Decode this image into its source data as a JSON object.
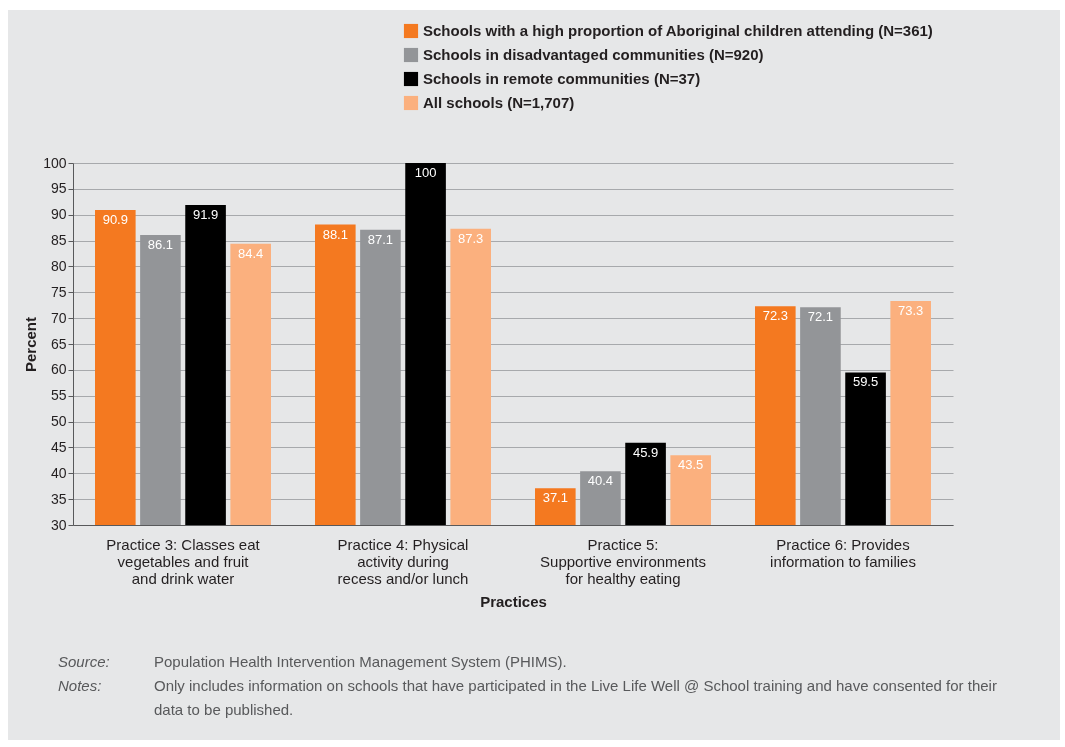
{
  "chart_data": {
    "type": "bar",
    "xlabel": "Practices",
    "ylabel": "Percent",
    "categories": [
      "Practice 3: Classes eat\nvegetables and fruit\nand drink water",
      "Practice 4: Physical\nactivity during\nrecess and/or lunch",
      "Practice 5:\nSupportive environments\nfor healthy eating",
      "Practice 6: Provides\ninformation to families"
    ],
    "series": [
      {
        "name": "Schools with a high proportion of Aboriginal children attending (N=361)",
        "color": "#f47920",
        "values": [
          90.9,
          88.1,
          37.1,
          72.3
        ]
      },
      {
        "name": "Schools in disadvantaged communities (N=920)",
        "color": "#939598",
        "values": [
          86.1,
          87.1,
          40.4,
          72.1
        ]
      },
      {
        "name": "Schools in remote communities (N=37)",
        "color": "#000000",
        "values": [
          91.9,
          100,
          45.9,
          59.5
        ]
      },
      {
        "name": "All schools (N=1,707)",
        "color": "#fbb07e",
        "values": [
          84.4,
          87.3,
          43.5,
          73.3
        ]
      }
    ],
    "ylim": [
      30,
      100
    ],
    "yticks": [
      30,
      35,
      40,
      45,
      50,
      55,
      60,
      65,
      70,
      75,
      80,
      85,
      90,
      95,
      100
    ],
    "grid": "y",
    "legend": "top",
    "data_labels": true,
    "annotations": [
      "Source: Population Health Intervention Management System (PHIMS).",
      "Notes: Only includes information on schools that have participated in the Live Life Well @ School training and have consented for their data to be published."
    ]
  }
}
